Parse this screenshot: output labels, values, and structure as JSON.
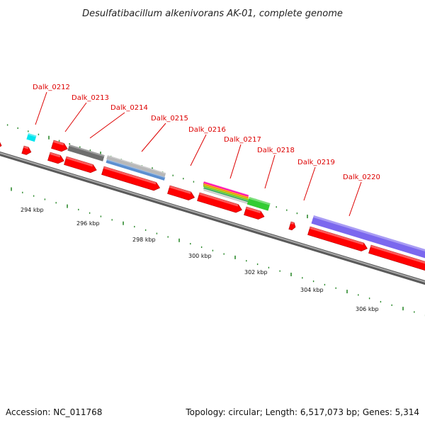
{
  "title": "Desulfatibacillum alkenivorans AK-01, complete genome",
  "footer": {
    "accession": "Accession: NC_011768",
    "stats": "Topology: circular; Length: 6,517,073 bp; Genes: 5,314"
  },
  "gene_labels": [
    "Dalk_0212",
    "Dalk_0213",
    "Dalk_0214",
    "Dalk_0215",
    "Dalk_0216",
    "Dalk_0217",
    "Dalk_0218",
    "Dalk_0219",
    "Dalk_0220"
  ],
  "scale_labels": [
    "294 kbp",
    "296 kbp",
    "298 kbp",
    "300 kbp",
    "302 kbp",
    "304 kbp",
    "306 kbp"
  ],
  "colors": {
    "gene": "#ff0000",
    "backbone": "#888888",
    "tick_major": "#2e8b2e",
    "tick_minor": "#2e8b2e",
    "label": "#dd0000",
    "feature_cyan": "#00e5ee",
    "feature_gray": "#6e6e6e",
    "feature_lightgray": "#b8b8b8",
    "feature_blue": "#5b8fd0",
    "feature_green": "#33cc33",
    "feature_purple": "#7b68ee",
    "multi_band": [
      "#ff00aa",
      "#ff8800",
      "#88cc00",
      "#33aa55",
      "#cccccc"
    ]
  }
}
